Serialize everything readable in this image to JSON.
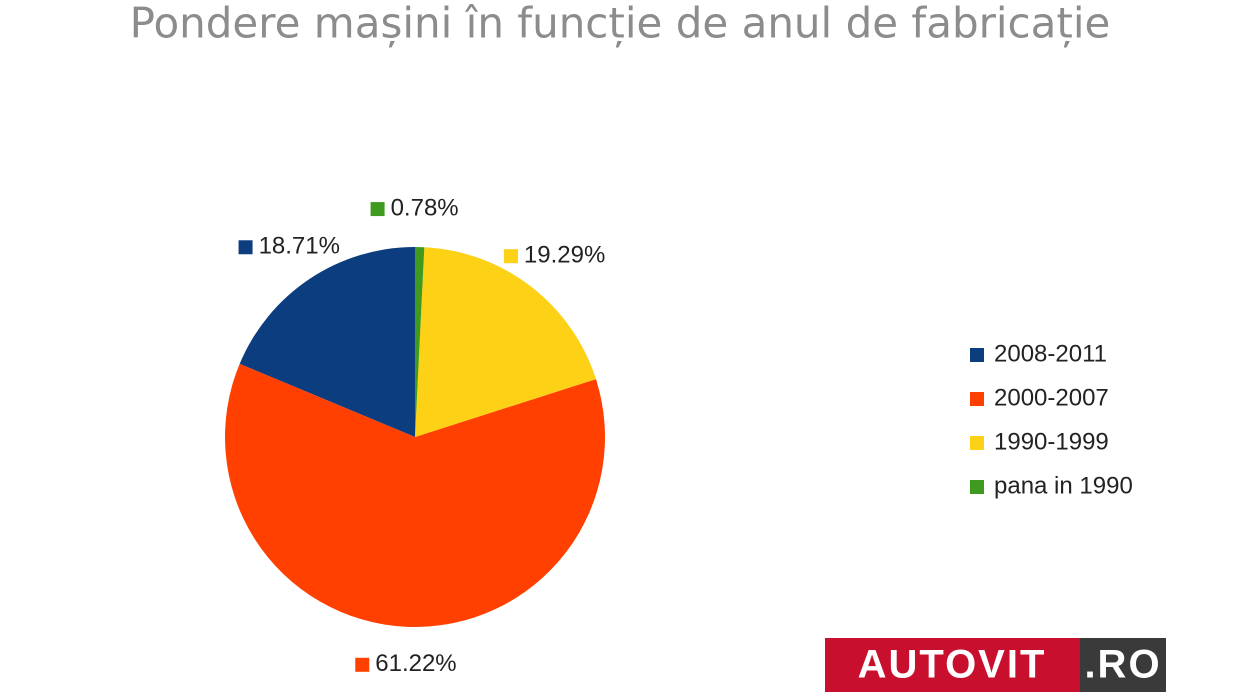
{
  "chart_data": {
    "type": "pie",
    "title": "Pondere mașini în funcție de anul de fabricație",
    "categories": [
      "2008-2011",
      "2000-2007",
      "1990-1999",
      "pana in 1990"
    ],
    "values": [
      18.71,
      61.22,
      19.29,
      0.78
    ],
    "value_labels": [
      "18.71%",
      "61.22%",
      "19.29%",
      "0.78%"
    ],
    "colors": [
      "#0b3d7f",
      "#ff4000",
      "#fcd116",
      "#3f9a1f"
    ],
    "legend": "right"
  },
  "logo": {
    "main": "AUTOVIT",
    "suffix": ".RO"
  }
}
